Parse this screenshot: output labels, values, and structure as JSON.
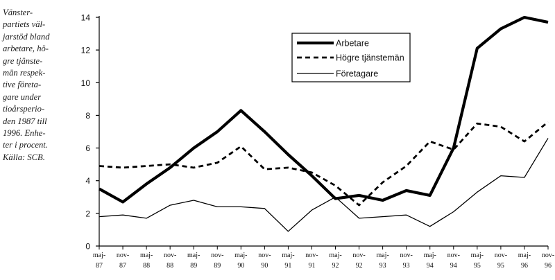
{
  "caption": {
    "lines": [
      "Vänster-",
      "partiets väl-",
      "jarstöd bland",
      "arbetare, hö-",
      "gre tjänste-",
      "män respek-",
      "tive företa-",
      "gare under",
      "tioårsperio-",
      "den 1987 till",
      "1996. Enhe-",
      "ter i procent.",
      "Källa: SCB."
    ]
  },
  "chart_data": {
    "type": "line",
    "categories": [
      [
        "maj-",
        "87"
      ],
      [
        "nov-",
        "87"
      ],
      [
        "maj-",
        "88"
      ],
      [
        "nov-",
        "88"
      ],
      [
        "maj-",
        "89"
      ],
      [
        "nov-",
        "89"
      ],
      [
        "maj-",
        "90"
      ],
      [
        "nov-",
        "90"
      ],
      [
        "maj-",
        "91"
      ],
      [
        "nov-",
        "91"
      ],
      [
        "maj-",
        "92"
      ],
      [
        "nov-",
        "92"
      ],
      [
        "maj-",
        "93"
      ],
      [
        "nov-",
        "93"
      ],
      [
        "maj-",
        "94"
      ],
      [
        "nov-",
        "94"
      ],
      [
        "maj-",
        "95"
      ],
      [
        "nov-",
        "95"
      ],
      [
        "maj-",
        "96"
      ],
      [
        "nov-",
        "96"
      ]
    ],
    "series": [
      {
        "name": "Arbetare",
        "style": "thick",
        "values": [
          3.5,
          2.7,
          3.8,
          4.8,
          6.0,
          7.0,
          8.3,
          7.0,
          5.6,
          4.3,
          2.9,
          3.1,
          2.8,
          3.4,
          3.1,
          6.0,
          12.1,
          13.3,
          14.0,
          13.7
        ]
      },
      {
        "name": "Högre tjänstemän",
        "style": "dashed",
        "values": [
          4.9,
          4.8,
          4.9,
          5.0,
          4.8,
          5.1,
          6.1,
          4.7,
          4.8,
          4.5,
          3.7,
          2.5,
          3.9,
          4.9,
          6.4,
          5.9,
          7.5,
          7.3,
          6.4,
          7.6
        ]
      },
      {
        "name": "Företagare",
        "style": "thin",
        "values": [
          1.8,
          1.9,
          1.7,
          2.5,
          2.8,
          2.4,
          2.4,
          2.3,
          0.9,
          2.2,
          3.0,
          1.7,
          1.8,
          1.9,
          1.2,
          2.1,
          3.3,
          4.3,
          4.2,
          6.6
        ]
      }
    ],
    "ylim": [
      0,
      14
    ],
    "yticks": [
      0,
      2,
      4,
      6,
      8,
      10,
      12,
      14
    ],
    "grid": false,
    "legend_position": "top-center",
    "colors": {
      "line": "#000000",
      "axis": "#000000"
    }
  }
}
